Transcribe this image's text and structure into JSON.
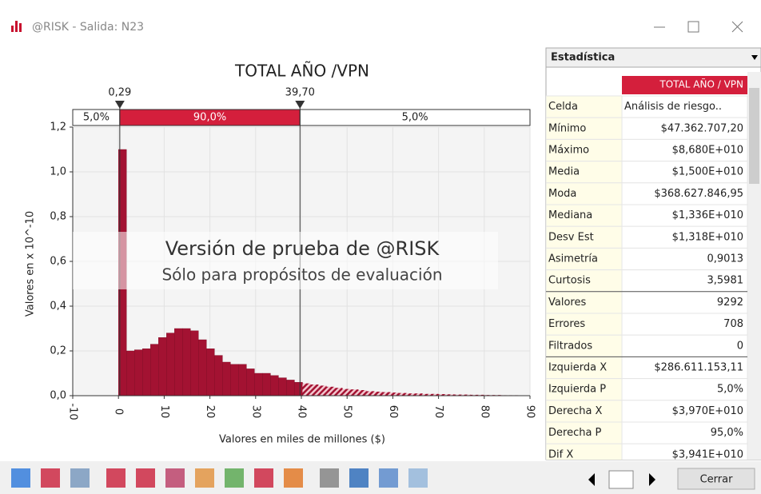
{
  "window": {
    "title": "@RISK - Salida: N23"
  },
  "chart_data": {
    "type": "histogram",
    "title": "TOTAL AÑO /VPN",
    "xlabel": "Valores en miles de millones ($)",
    "ylabel": "Valores en x 10^-10",
    "bins": [
      0,
      1.75,
      3.5,
      5.25,
      7,
      8.75,
      10.5,
      12.25,
      14,
      15.75,
      17.5,
      19.25,
      21,
      22.75,
      24.5,
      26.25,
      28,
      29.75,
      31.5,
      33.25,
      35,
      36.75,
      38.5,
      40.25,
      42,
      43.75,
      45.5,
      47.25,
      49,
      50.75,
      52.5,
      54.25,
      56,
      57.75,
      59.5,
      61.25,
      63,
      64.75,
      66.5,
      68.25,
      70,
      71.75,
      73.5,
      75.25,
      77,
      78.75,
      80.5,
      82.25,
      84,
      85.75,
      87.5
    ],
    "values": [
      1.1,
      0.2,
      0.205,
      0.21,
      0.23,
      0.26,
      0.28,
      0.3,
      0.3,
      0.29,
      0.25,
      0.21,
      0.18,
      0.15,
      0.14,
      0.14,
      0.12,
      0.1,
      0.1,
      0.09,
      0.08,
      0.07,
      0.06,
      0.055,
      0.05,
      0.045,
      0.04,
      0.035,
      0.03,
      0.028,
      0.025,
      0.02,
      0.018,
      0.016,
      0.014,
      0.012,
      0.01,
      0.01,
      0.008,
      0.008,
      0.007,
      0.006,
      0.005,
      0.005,
      0.004,
      0.004,
      0.003,
      0.003,
      0.002,
      0.002
    ],
    "color": "#a31232",
    "xlim": [
      -10,
      90
    ],
    "xticks": [
      -10,
      0,
      10,
      20,
      30,
      40,
      50,
      60,
      70,
      80,
      90
    ],
    "ylim": [
      0,
      1.2
    ],
    "yticks": [
      {
        "value": 0,
        "label": "0,0"
      },
      {
        "value": 0.2,
        "label": "0,2"
      },
      {
        "value": 0.4,
        "label": "0,4"
      },
      {
        "value": 0.6,
        "label": "0,6"
      },
      {
        "value": 0.8,
        "label": "0,8"
      },
      {
        "value": 1.0,
        "label": "1,0"
      },
      {
        "value": 1.2,
        "label": "1,2"
      }
    ],
    "grid": true,
    "delimiters": [
      {
        "value": 0.29,
        "label": "0,29"
      },
      {
        "value": 39.7,
        "label": "39,70"
      }
    ],
    "bands": [
      "5,0%",
      "90,0%",
      "5,0%"
    ],
    "watermark": [
      "Versión de prueba de @RISK",
      "Sólo para propósitos de evaluación"
    ]
  },
  "stats": {
    "header": "Estadística",
    "column": "TOTAL AÑO / VPN",
    "rows": [
      [
        "Celda",
        "Análisis de riesgo.."
      ],
      [
        "Mínimo",
        "$47.362.707,20"
      ],
      [
        "Máximo",
        "$8,680E+010"
      ],
      [
        "Media",
        "$1,500E+010"
      ],
      [
        "Moda",
        "$368.627.846,95"
      ],
      [
        "Mediana",
        "$1,336E+010"
      ],
      [
        "Desv Est",
        "$1,318E+010"
      ],
      [
        "Asimetría",
        "0,9013"
      ],
      [
        "Curtosis",
        "3,5981"
      ],
      [
        "Valores",
        "9292"
      ],
      [
        "Errores",
        "708"
      ],
      [
        "Filtrados",
        "0"
      ],
      [
        "Izquierda X",
        "$286.611.153,11"
      ],
      [
        "Izquierda P",
        "5,0%"
      ],
      [
        "Derecha X",
        "$3,970E+010"
      ],
      [
        "Derecha P",
        "95,0%"
      ],
      [
        "Dif X",
        "$3,941E+010"
      ]
    ]
  },
  "footer": {
    "close": "Cerrar"
  }
}
